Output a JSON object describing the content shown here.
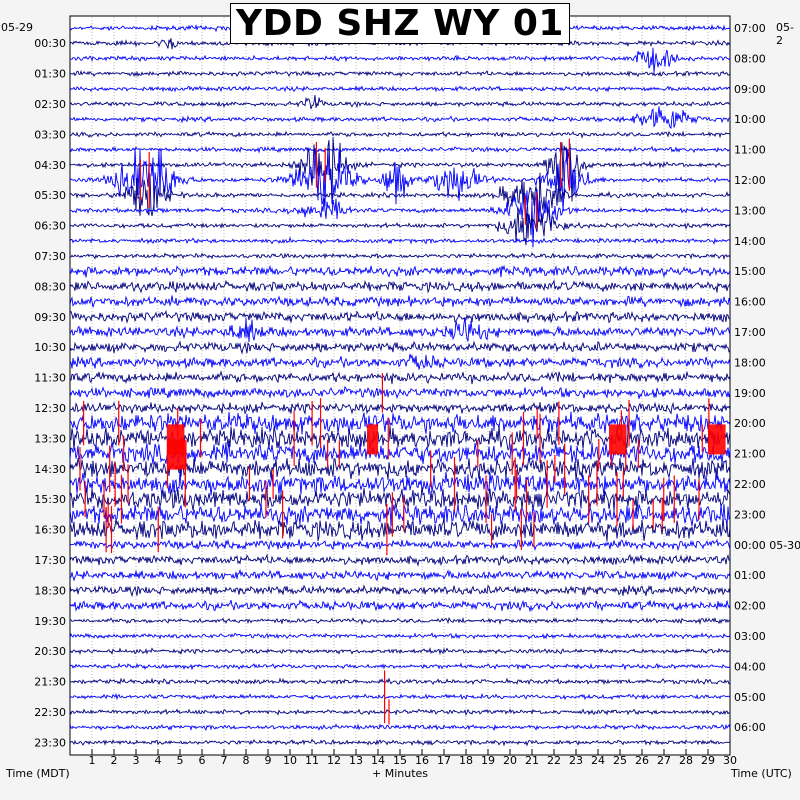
{
  "chart_data": {
    "type": "line",
    "title": "YDD SHZ WY 01",
    "xlabel": "+ Minutes",
    "xlim": [
      0,
      30
    ],
    "x_ticks": [
      "1",
      "2",
      "3",
      "4",
      "5",
      "6",
      "7",
      "8",
      "9",
      "10",
      "11",
      "12",
      "13",
      "14",
      "15",
      "16",
      "17",
      "18",
      "19",
      "20",
      "21",
      "22",
      "23",
      "24",
      "25",
      "26",
      "27",
      "28",
      "29",
      "30"
    ],
    "left_axis_label": "Time (MDT)",
    "right_axis_label": "Time (UTC)",
    "left_date": "05-29",
    "right_date": "05-2",
    "left_time_labels": [
      "00:30",
      "01:30",
      "02:30",
      "03:30",
      "04:30",
      "05:30",
      "06:30",
      "07:30",
      "08:30",
      "09:30",
      "10:30",
      "11:30",
      "12:30",
      "13:30",
      "14:30",
      "15:30",
      "16:30",
      "17:30",
      "18:30",
      "19:30",
      "20:30",
      "21:30",
      "22:30",
      "23:30"
    ],
    "right_time_labels": [
      "07:00",
      "08:00",
      "09:00",
      "10:00",
      "11:00",
      "12:00",
      "13:00",
      "14:00",
      "15:00",
      "16:00",
      "17:00",
      "18:00",
      "19:00",
      "20:00",
      "21:00",
      "22:00",
      "23:00",
      "00:00 05-30",
      "01:00",
      "02:00",
      "03:00",
      "04:00",
      "05:00",
      "06:00"
    ],
    "trace_count": 48,
    "minutes_per_trace": 30,
    "trace_colors": [
      "#0000ff",
      "#00007f"
    ],
    "clip_color": "#ff0000"
  }
}
